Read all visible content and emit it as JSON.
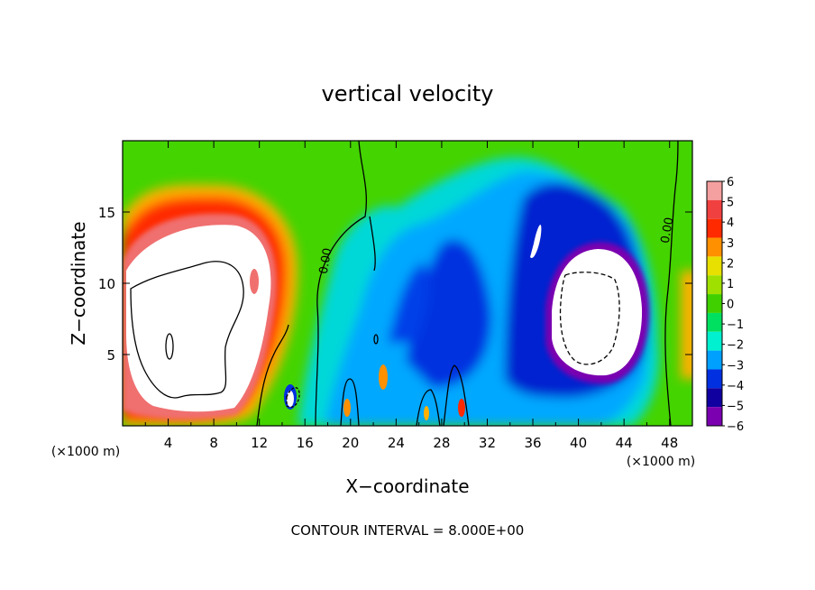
{
  "chart_data": {
    "type": "heatmap",
    "title": "vertical velocity",
    "xlabel": "X−coordinate",
    "ylabel": "Z−coordinate",
    "x_unit_left": "(×1000 m)",
    "x_unit_right": "(×1000 m)",
    "xlim": [
      0,
      50
    ],
    "ylim": [
      0,
      20
    ],
    "x_ticks": [
      4,
      8,
      12,
      16,
      20,
      24,
      28,
      32,
      36,
      40,
      44,
      48
    ],
    "y_ticks": [
      5,
      10,
      15
    ],
    "colorbar_levels": [
      6,
      5,
      4,
      3,
      2,
      1,
      0,
      -1,
      -2,
      -3,
      -4,
      -5,
      -6
    ],
    "colorbar_labels": [
      "6",
      "5",
      "4",
      "3",
      "2",
      "1",
      "0",
      "−1",
      "−2",
      "−3",
      "−4",
      "−5",
      "−6"
    ],
    "colorbar_colors": [
      "#f5a0a0",
      "#f04040",
      "#ff2a00",
      "#ff9000",
      "#e8e000",
      "#a0e000",
      "#40d000",
      "#00e060",
      "#00f0d0",
      "#00a0ff",
      "#0030e0",
      "#1000a0",
      "#7a00b0"
    ],
    "contour_labels": [
      "0.00",
      "0.00"
    ],
    "footer": "CONTOUR INTERVAL = 8.000E+00"
  }
}
